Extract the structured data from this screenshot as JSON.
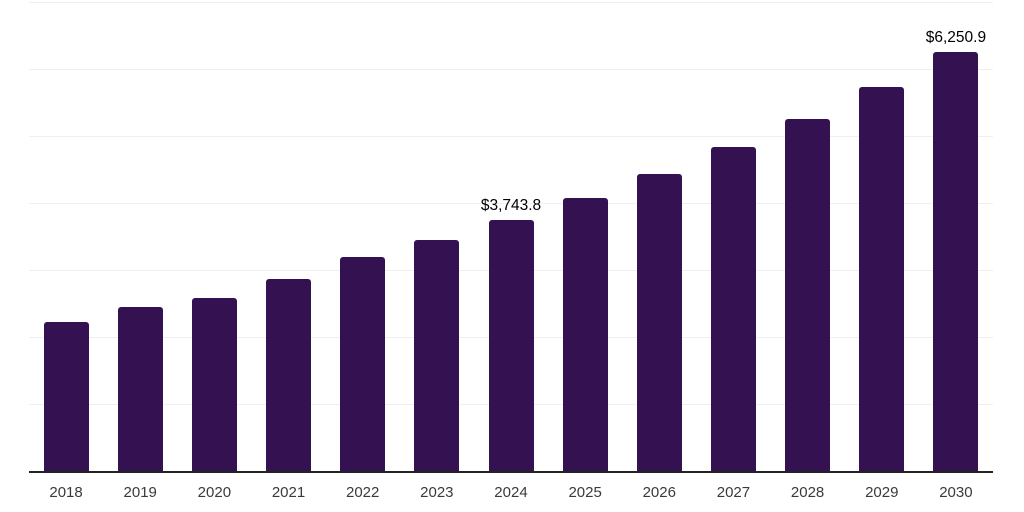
{
  "chart_data": {
    "type": "bar",
    "categories": [
      "2018",
      "2019",
      "2020",
      "2021",
      "2022",
      "2023",
      "2024",
      "2025",
      "2026",
      "2027",
      "2028",
      "2029",
      "2030"
    ],
    "values": [
      2230,
      2450,
      2575,
      2870,
      3190,
      3455,
      3743.8,
      4080,
      4440,
      4835,
      5260,
      5735,
      6250.9
    ],
    "labeled_values_note": "only 2024 and 2030 carry visible data labels; other values estimated from gridlines",
    "data_labels": [
      {
        "category": "2024",
        "text": "$3,743.8"
      },
      {
        "category": "2030",
        "text": "$6,250.9"
      }
    ],
    "ylim": [
      0,
      7000
    ],
    "gridline_step": 1000,
    "grid": "horizontal",
    "legend": "none",
    "y_axis_tick_labels": "none",
    "colors": {
      "bar": "#341150",
      "axis_line": "#242424",
      "gridline": "#efefef",
      "tick_label": "#3a3a3a",
      "data_label": "#000000",
      "background": "#ffffff"
    }
  }
}
